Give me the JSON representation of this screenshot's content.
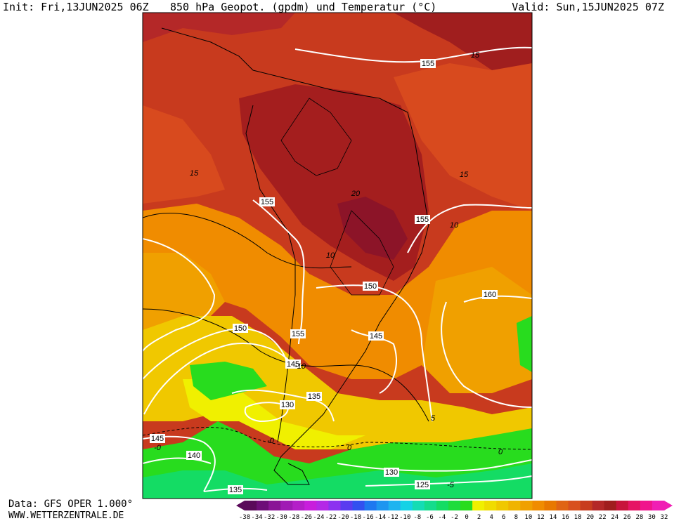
{
  "header": {
    "init": "Init: Fri,13JUN2025 06Z",
    "title": "850 hPa Geopot. (gpdm) und Temperatur (°C)",
    "valid": "Valid: Sun,15JUN2025 07Z"
  },
  "footer": {
    "data_source": "Data: GFS OPER 1.000°",
    "website": "WWW.WETTERZENTRALE.DE"
  },
  "legend": {
    "ticks": [
      "-38",
      "-34",
      "-32",
      "-30",
      "-28",
      "-26",
      "-24",
      "-22",
      "-20",
      "-18",
      "-16",
      "-14",
      "-12",
      "-10",
      "-8",
      "-6",
      "-4",
      "-2",
      "0",
      "2",
      "4",
      "6",
      "8",
      "10",
      "12",
      "14",
      "16",
      "18",
      "20",
      "22",
      "24",
      "26",
      "28",
      "30",
      "32"
    ],
    "colors": [
      "#5a0a5a",
      "#6e0e78",
      "#8a1496",
      "#a01ab4",
      "#b41ec8",
      "#c81edc",
      "#b428e6",
      "#8c32f0",
      "#5a3cf0",
      "#3250f0",
      "#1e78f0",
      "#1e96f0",
      "#1eb4f0",
      "#14d2e6",
      "#14dcb4",
      "#14dc8c",
      "#14dc64",
      "#1edc3c",
      "#28dc1e",
      "#f0f000",
      "#f0dc00",
      "#f0c800",
      "#f0b400",
      "#f0a000",
      "#f08c00",
      "#e87800",
      "#e06414",
      "#d8501e",
      "#c83c1e",
      "#b42828",
      "#a01e1e",
      "#c8143c",
      "#e61464",
      "#f0148c",
      "#f01eb4"
    ]
  },
  "map": {
    "geopotential_labels": [
      "155",
      "155",
      "155",
      "150",
      "160",
      "150",
      "155",
      "145",
      "145",
      "135",
      "130",
      "145",
      "140",
      "130",
      "125",
      "135"
    ],
    "temperature_labels": [
      "15",
      "15",
      "15",
      "20",
      "10",
      "10",
      "5",
      "0",
      "-0",
      "0",
      "-5",
      "-0",
      "-10"
    ]
  }
}
